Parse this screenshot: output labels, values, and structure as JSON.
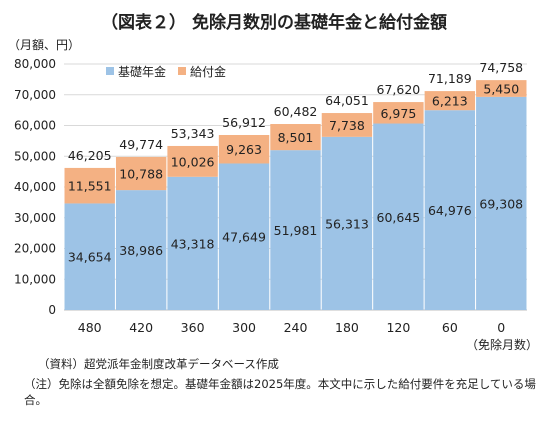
{
  "title": "（図表２） 免除月数別の基礎年金と給付金額",
  "y_unit": "（月額、円）",
  "x_unit": "（免除月数）",
  "source": "（資料）超党派年金制度改革データベース作成",
  "note": "（注）免除は全額免除を想定。基礎年金額は2025年度。本文中に示した給付要件を充足している場合。",
  "colors": {
    "base": "#9dc3e6",
    "benefit": "#f4b183",
    "grid": "#d9d9d9",
    "axis": "#bfbfbf"
  },
  "chart_data": {
    "type": "bar",
    "stacked": true,
    "categories": [
      "480",
      "420",
      "360",
      "300",
      "240",
      "180",
      "120",
      "60",
      "0"
    ],
    "series": [
      {
        "name": "基礎年金",
        "values": [
          34654,
          38986,
          43318,
          47649,
          51981,
          56313,
          60645,
          64976,
          69308
        ]
      },
      {
        "name": "給付金",
        "values": [
          11551,
          10788,
          10026,
          9263,
          8501,
          7738,
          6975,
          6213,
          5450
        ]
      }
    ],
    "totals": [
      46205,
      49774,
      53343,
      56912,
      60482,
      64051,
      67620,
      71189,
      74758
    ],
    "ylim": [
      0,
      80000
    ],
    "yticks": [
      0,
      10000,
      20000,
      30000,
      40000,
      50000,
      60000,
      70000,
      80000
    ],
    "grid": true,
    "legend": "top-left"
  }
}
